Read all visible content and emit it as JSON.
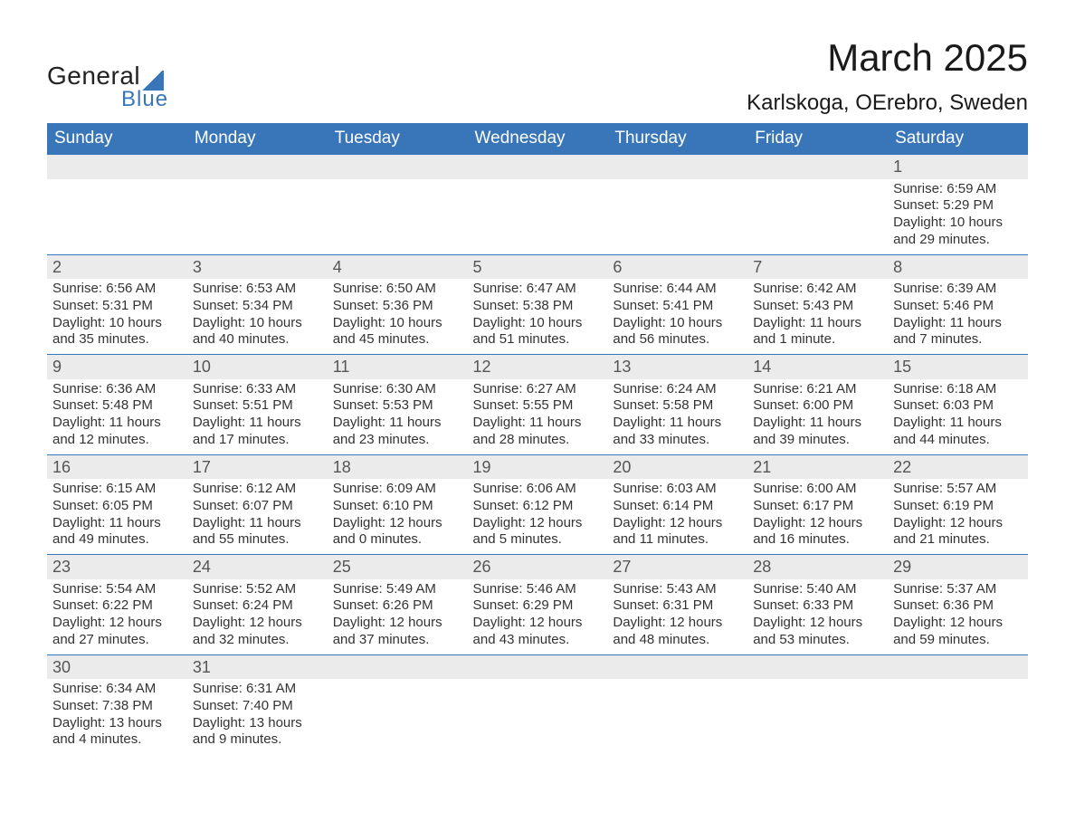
{
  "logo": {
    "text1": "General",
    "text2": "Blue"
  },
  "header": {
    "title": "March 2025",
    "location": "Karlskoga, OErebro, Sweden"
  },
  "colors": {
    "header_bg": "#3976b9",
    "header_fg": "#ffffff",
    "daynum_bg": "#ebebeb",
    "daynum_fg": "#555555",
    "border": "#3976b9",
    "text": "#333333"
  },
  "weekdays": [
    "Sunday",
    "Monday",
    "Tuesday",
    "Wednesday",
    "Thursday",
    "Friday",
    "Saturday"
  ],
  "weeks": [
    [
      null,
      null,
      null,
      null,
      null,
      null,
      {
        "day": "1",
        "sunrise": "Sunrise: 6:59 AM",
        "sunset": "Sunset: 5:29 PM",
        "daylight": "Daylight: 10 hours and 29 minutes."
      }
    ],
    [
      {
        "day": "2",
        "sunrise": "Sunrise: 6:56 AM",
        "sunset": "Sunset: 5:31 PM",
        "daylight": "Daylight: 10 hours and 35 minutes."
      },
      {
        "day": "3",
        "sunrise": "Sunrise: 6:53 AM",
        "sunset": "Sunset: 5:34 PM",
        "daylight": "Daylight: 10 hours and 40 minutes."
      },
      {
        "day": "4",
        "sunrise": "Sunrise: 6:50 AM",
        "sunset": "Sunset: 5:36 PM",
        "daylight": "Daylight: 10 hours and 45 minutes."
      },
      {
        "day": "5",
        "sunrise": "Sunrise: 6:47 AM",
        "sunset": "Sunset: 5:38 PM",
        "daylight": "Daylight: 10 hours and 51 minutes."
      },
      {
        "day": "6",
        "sunrise": "Sunrise: 6:44 AM",
        "sunset": "Sunset: 5:41 PM",
        "daylight": "Daylight: 10 hours and 56 minutes."
      },
      {
        "day": "7",
        "sunrise": "Sunrise: 6:42 AM",
        "sunset": "Sunset: 5:43 PM",
        "daylight": "Daylight: 11 hours and 1 minute."
      },
      {
        "day": "8",
        "sunrise": "Sunrise: 6:39 AM",
        "sunset": "Sunset: 5:46 PM",
        "daylight": "Daylight: 11 hours and 7 minutes."
      }
    ],
    [
      {
        "day": "9",
        "sunrise": "Sunrise: 6:36 AM",
        "sunset": "Sunset: 5:48 PM",
        "daylight": "Daylight: 11 hours and 12 minutes."
      },
      {
        "day": "10",
        "sunrise": "Sunrise: 6:33 AM",
        "sunset": "Sunset: 5:51 PM",
        "daylight": "Daylight: 11 hours and 17 minutes."
      },
      {
        "day": "11",
        "sunrise": "Sunrise: 6:30 AM",
        "sunset": "Sunset: 5:53 PM",
        "daylight": "Daylight: 11 hours and 23 minutes."
      },
      {
        "day": "12",
        "sunrise": "Sunrise: 6:27 AM",
        "sunset": "Sunset: 5:55 PM",
        "daylight": "Daylight: 11 hours and 28 minutes."
      },
      {
        "day": "13",
        "sunrise": "Sunrise: 6:24 AM",
        "sunset": "Sunset: 5:58 PM",
        "daylight": "Daylight: 11 hours and 33 minutes."
      },
      {
        "day": "14",
        "sunrise": "Sunrise: 6:21 AM",
        "sunset": "Sunset: 6:00 PM",
        "daylight": "Daylight: 11 hours and 39 minutes."
      },
      {
        "day": "15",
        "sunrise": "Sunrise: 6:18 AM",
        "sunset": "Sunset: 6:03 PM",
        "daylight": "Daylight: 11 hours and 44 minutes."
      }
    ],
    [
      {
        "day": "16",
        "sunrise": "Sunrise: 6:15 AM",
        "sunset": "Sunset: 6:05 PM",
        "daylight": "Daylight: 11 hours and 49 minutes."
      },
      {
        "day": "17",
        "sunrise": "Sunrise: 6:12 AM",
        "sunset": "Sunset: 6:07 PM",
        "daylight": "Daylight: 11 hours and 55 minutes."
      },
      {
        "day": "18",
        "sunrise": "Sunrise: 6:09 AM",
        "sunset": "Sunset: 6:10 PM",
        "daylight": "Daylight: 12 hours and 0 minutes."
      },
      {
        "day": "19",
        "sunrise": "Sunrise: 6:06 AM",
        "sunset": "Sunset: 6:12 PM",
        "daylight": "Daylight: 12 hours and 5 minutes."
      },
      {
        "day": "20",
        "sunrise": "Sunrise: 6:03 AM",
        "sunset": "Sunset: 6:14 PM",
        "daylight": "Daylight: 12 hours and 11 minutes."
      },
      {
        "day": "21",
        "sunrise": "Sunrise: 6:00 AM",
        "sunset": "Sunset: 6:17 PM",
        "daylight": "Daylight: 12 hours and 16 minutes."
      },
      {
        "day": "22",
        "sunrise": "Sunrise: 5:57 AM",
        "sunset": "Sunset: 6:19 PM",
        "daylight": "Daylight: 12 hours and 21 minutes."
      }
    ],
    [
      {
        "day": "23",
        "sunrise": "Sunrise: 5:54 AM",
        "sunset": "Sunset: 6:22 PM",
        "daylight": "Daylight: 12 hours and 27 minutes."
      },
      {
        "day": "24",
        "sunrise": "Sunrise: 5:52 AM",
        "sunset": "Sunset: 6:24 PM",
        "daylight": "Daylight: 12 hours and 32 minutes."
      },
      {
        "day": "25",
        "sunrise": "Sunrise: 5:49 AM",
        "sunset": "Sunset: 6:26 PM",
        "daylight": "Daylight: 12 hours and 37 minutes."
      },
      {
        "day": "26",
        "sunrise": "Sunrise: 5:46 AM",
        "sunset": "Sunset: 6:29 PM",
        "daylight": "Daylight: 12 hours and 43 minutes."
      },
      {
        "day": "27",
        "sunrise": "Sunrise: 5:43 AM",
        "sunset": "Sunset: 6:31 PM",
        "daylight": "Daylight: 12 hours and 48 minutes."
      },
      {
        "day": "28",
        "sunrise": "Sunrise: 5:40 AM",
        "sunset": "Sunset: 6:33 PM",
        "daylight": "Daylight: 12 hours and 53 minutes."
      },
      {
        "day": "29",
        "sunrise": "Sunrise: 5:37 AM",
        "sunset": "Sunset: 6:36 PM",
        "daylight": "Daylight: 12 hours and 59 minutes."
      }
    ],
    [
      {
        "day": "30",
        "sunrise": "Sunrise: 6:34 AM",
        "sunset": "Sunset: 7:38 PM",
        "daylight": "Daylight: 13 hours and 4 minutes."
      },
      {
        "day": "31",
        "sunrise": "Sunrise: 6:31 AM",
        "sunset": "Sunset: 7:40 PM",
        "daylight": "Daylight: 13 hours and 9 minutes."
      },
      null,
      null,
      null,
      null,
      null
    ]
  ]
}
